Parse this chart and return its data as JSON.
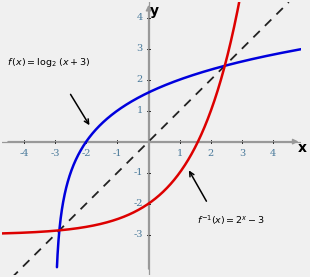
{
  "xlim": [
    -4.7,
    4.9
  ],
  "ylim": [
    -4.3,
    4.5
  ],
  "xticks": [
    -4,
    -3,
    -2,
    -1,
    1,
    2,
    3,
    4
  ],
  "yticks": [
    -3,
    -2,
    -1,
    1,
    2,
    3,
    4
  ],
  "blue_color": "#0000dd",
  "red_color": "#dd0000",
  "dashed_color": "#222222",
  "grid_color": "#c8c8c8",
  "axis_color": "#999999",
  "background_color": "#f0f0f0",
  "tick_color": "#4a7a9b",
  "figsize": [
    3.1,
    2.77
  ],
  "dpi": 100
}
